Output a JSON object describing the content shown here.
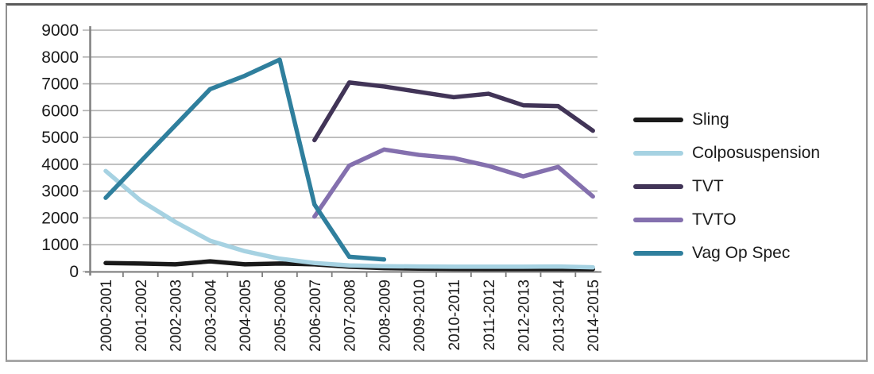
{
  "colors": {
    "background": "#ffffff",
    "gridline": "#b0b0b0",
    "axis": "#808080",
    "text": "#1a1a1a",
    "frame_border": "#919191",
    "frame_border_top": "#5a5a5a"
  },
  "chart_data": {
    "type": "line",
    "title": "",
    "xlabel": "",
    "ylabel": "",
    "categories": [
      "2000-2001",
      "2001-2002",
      "2002-2003",
      "2003-2004",
      "2004-2005",
      "2005-2006",
      "2006-2007",
      "2007-2008",
      "2008-2009",
      "2009-2010",
      "2010-2011",
      "2011-2012",
      "2012-2013",
      "2013-2014",
      "2014-2015"
    ],
    "series": [
      {
        "name": "Sling",
        "color": "#1a1a1a",
        "values": [
          320,
          300,
          270,
          380,
          270,
          300,
          270,
          180,
          130,
          110,
          100,
          95,
          95,
          95,
          90
        ]
      },
      {
        "name": "Colposuspension",
        "color": "#a6d2e2",
        "values": [
          3750,
          2650,
          1850,
          1150,
          760,
          480,
          320,
          230,
          200,
          190,
          180,
          180,
          180,
          190,
          160
        ]
      },
      {
        "name": "TVT",
        "color": "#413457",
        "values": [
          null,
          null,
          null,
          null,
          null,
          null,
          4900,
          7050,
          6900,
          6700,
          6500,
          6630,
          6200,
          6170,
          5250
        ]
      },
      {
        "name": "TVTO",
        "color": "#8470ae",
        "values": [
          null,
          null,
          null,
          null,
          null,
          null,
          2050,
          3950,
          4550,
          4350,
          4230,
          3940,
          3550,
          3900,
          2800
        ]
      },
      {
        "name": "Vag Op Spec",
        "color": "#2f7f9d",
        "values": [
          2750,
          4100,
          5450,
          6800,
          7300,
          7900,
          2500,
          550,
          450,
          null,
          null,
          null,
          null,
          null,
          null
        ]
      }
    ],
    "ylim": [
      0,
      9000
    ],
    "ytick_step": 1000,
    "y_ticks": [
      "9000",
      "8000",
      "7000",
      "6000",
      "5000",
      "4000",
      "3000",
      "2000",
      "1000",
      "0"
    ],
    "grid": true,
    "legend_position": "right"
  }
}
